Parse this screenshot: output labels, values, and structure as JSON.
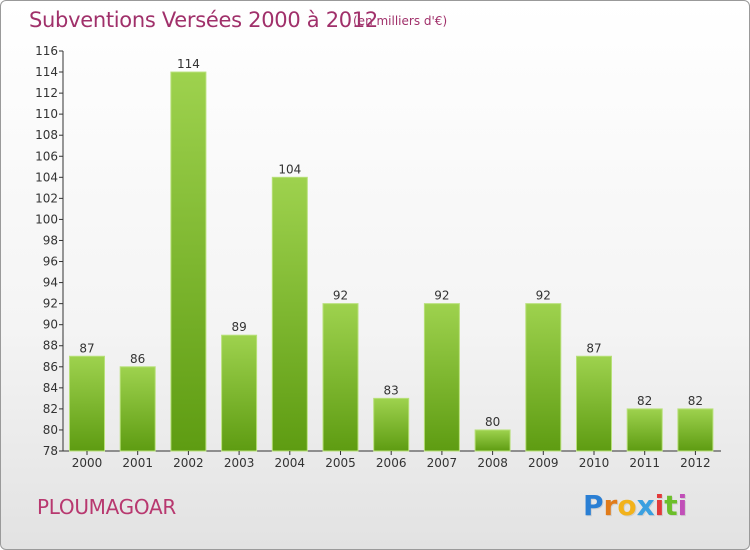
{
  "header": {
    "title": "Subventions Versées 2000 à 2012",
    "subtitle": "(en milliers d'€)"
  },
  "footer": {
    "commune": "PLOUMAGOAR",
    "logo_letters": [
      "P",
      "r",
      "o",
      "x",
      "i",
      "t",
      "i"
    ],
    "logo_colors": [
      "#2a7fd4",
      "#e07b1a",
      "#f2b21b",
      "#3aa0e0",
      "#e23a3a",
      "#6cbf2a",
      "#c14fb8"
    ]
  },
  "colors": {
    "bar_light": "#9ed24e",
    "bar_dark": "#5e9c12",
    "axis": "#333333",
    "grid": "#dddddd"
  },
  "chart_data": {
    "type": "bar",
    "title": "Subventions Versées 2000 à 2012",
    "subtitle": "(en milliers d'€)",
    "categories": [
      "2000",
      "2001",
      "2002",
      "2003",
      "2004",
      "2005",
      "2006",
      "2007",
      "2008",
      "2009",
      "2010",
      "2011",
      "2012"
    ],
    "values": [
      87,
      86,
      114,
      89,
      104,
      92,
      83,
      92,
      80,
      92,
      87,
      82,
      82
    ],
    "data_labels": [
      "87",
      "86",
      "114",
      "89",
      "104",
      "92",
      "83",
      "92",
      "80",
      "92",
      "87",
      "82",
      "82"
    ],
    "ylim": [
      78,
      116
    ],
    "yticks": [
      "78",
      "80",
      "82",
      "84",
      "86",
      "88",
      "90",
      "92",
      "94",
      "96",
      "98",
      "100",
      "102",
      "104",
      "106",
      "108",
      "110",
      "112",
      "114",
      "116"
    ],
    "xlabel": "",
    "ylabel": "",
    "grid": false,
    "legend": "none"
  }
}
